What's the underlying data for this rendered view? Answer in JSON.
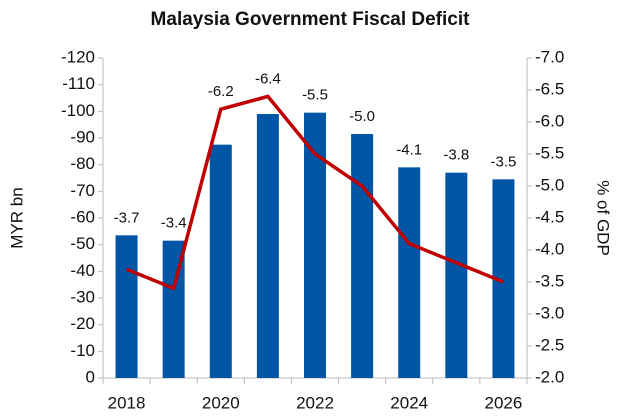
{
  "chart_data": {
    "type": "bar",
    "title": "Malaysia Government Fiscal Deficit",
    "y_label": "MYR bn",
    "y2_label": "% of GDP",
    "categories": [
      "2018",
      null,
      "2020",
      null,
      "2022",
      null,
      "2024",
      null,
      "2026"
    ],
    "series": [
      {
        "name": "MYR bn",
        "type": "bar",
        "color": "#0055a5",
        "values": [
          -53.5,
          -51.5,
          -87.5,
          -99,
          -99.5,
          -91.5,
          -79,
          -77,
          -74.5
        ]
      },
      {
        "name": "% of GDP",
        "type": "line",
        "axis": "y2",
        "color": "#c00000",
        "values": [
          -3.7,
          -3.4,
          -6.2,
          -6.4,
          -5.5,
          -5.0,
          -4.1,
          -3.8,
          -3.5
        ],
        "value_labels": [
          "-3.7",
          "-3.4",
          "-6.2",
          "-6.4",
          "-5.5",
          "-5.0",
          "-4.1",
          "-3.8",
          "-3.5"
        ]
      }
    ],
    "ylim": [
      0,
      -120
    ],
    "yticks": [
      0,
      -10,
      -20,
      -30,
      -40,
      -50,
      -60,
      -70,
      -80,
      -90,
      -100,
      -110,
      -120
    ],
    "y2lim": [
      -2.0,
      -7.0
    ],
    "y2ticks": [
      {
        "value": -2.0,
        "label": "-2.0"
      },
      {
        "value": -2.5,
        "label": "-2.5"
      },
      {
        "value": -3.0,
        "label": "-3.0"
      },
      {
        "value": -3.5,
        "label": "-3.5"
      },
      {
        "value": -4.0,
        "label": "-4.0"
      },
      {
        "value": -4.5,
        "label": "-4.5"
      },
      {
        "value": -5.0,
        "label": "-5.0"
      },
      {
        "value": -5.5,
        "label": "-5.5"
      },
      {
        "value": -6.0,
        "label": "-6.0"
      },
      {
        "value": -6.5,
        "label": "-6.5"
      },
      {
        "value": -7.0,
        "label": "-7.0"
      }
    ],
    "grid": false
  }
}
